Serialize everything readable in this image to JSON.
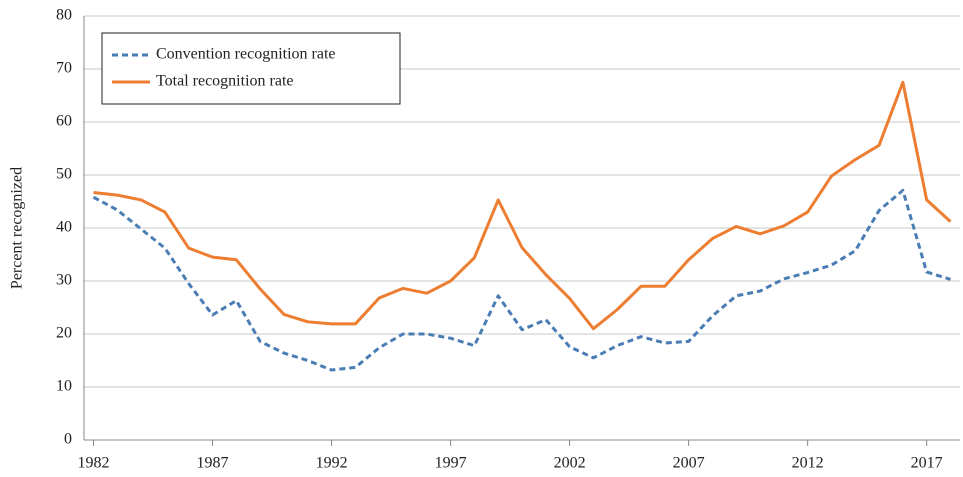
{
  "chart_data": {
    "type": "line",
    "y_label": "Percent recognized",
    "x": [
      1982,
      1983,
      1984,
      1985,
      1986,
      1987,
      1988,
      1989,
      1990,
      1991,
      1992,
      1993,
      1994,
      1995,
      1996,
      1997,
      1998,
      1999,
      2000,
      2001,
      2002,
      2003,
      2004,
      2005,
      2006,
      2007,
      2008,
      2009,
      2010,
      2011,
      2012,
      2013,
      2014,
      2015,
      2016,
      2017,
      2018
    ],
    "series": [
      {
        "name": "Convention recognition rate",
        "color": "#4a7db4",
        "dashed": true,
        "values": [
          45.8,
          43.4,
          39.8,
          36.2,
          29.5,
          23.6,
          26.3,
          18.6,
          16.4,
          15,
          13.2,
          13.7,
          17.4,
          20,
          20,
          19.2,
          17.8,
          27.2,
          20.8,
          22.7,
          17.6,
          15.5,
          17.8,
          19.5,
          18.3,
          18.6,
          23.4,
          27.2,
          28.1,
          30.4,
          31.6,
          33,
          35.7,
          43.3,
          47.1,
          31.7,
          30.3
        ]
      },
      {
        "name": "Total recognition rate",
        "color": "#ed7d31",
        "dashed": false,
        "values": [
          46.7,
          46.2,
          45.3,
          43,
          36.2,
          34.5,
          34,
          28.5,
          23.7,
          22.3,
          21.9,
          21.9,
          26.8,
          28.6,
          27.7,
          30,
          34.4,
          45.3,
          36.3,
          31.2,
          26.7,
          21,
          24.6,
          29,
          29,
          34,
          38,
          40.3,
          38.9,
          40.4,
          43,
          49.8,
          52.9,
          55.6,
          67.5,
          45.3,
          41.2
        ]
      }
    ],
    "xlim": [
      1981.6,
      2018.4
    ],
    "xticks": [
      1982,
      1987,
      1992,
      1997,
      2002,
      2007,
      2012,
      2017
    ],
    "ylim": [
      0,
      80
    ],
    "yticks": [
      0,
      10,
      20,
      30,
      40,
      50,
      60,
      70,
      80
    ],
    "grid": true,
    "legend": "upper-left"
  }
}
